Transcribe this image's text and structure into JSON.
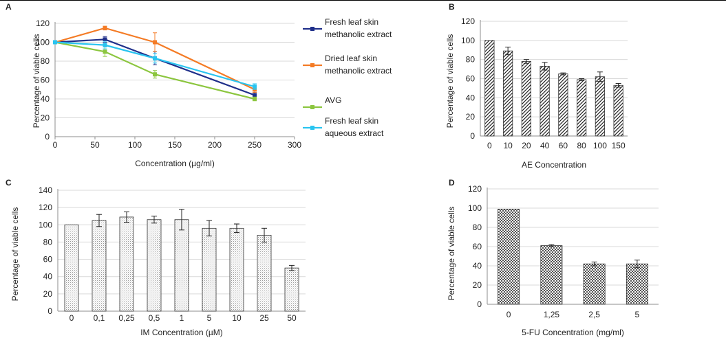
{
  "colors": {
    "axis": "#8c8c8c",
    "grid": "#d9d9d9",
    "text": "#222222",
    "bar_stroke": "#333333",
    "series_fresh_methanolic": "#1f2f8a",
    "series_dried_methanolic": "#f47b25",
    "series_avg": "#8cc63f",
    "series_fresh_aqueous": "#29c4f0"
  },
  "chart_data": [
    {
      "panel": "A",
      "type": "line",
      "xlabel": "Concentration (µg/ml)",
      "ylabel": "Percentage of viable cells",
      "xlim": [
        0,
        300
      ],
      "ylim": [
        0,
        120
      ],
      "xticks": [
        "0",
        "50",
        "100",
        "150",
        "200",
        "250",
        "300"
      ],
      "yticks": [
        "0",
        "20",
        "40",
        "60",
        "80",
        "100",
        "120"
      ],
      "grid": "horizontal",
      "legend_position": "right",
      "x": [
        0,
        62.5,
        125,
        250
      ],
      "series": [
        {
          "name": "Fresh leaf skin methanolic extract",
          "legend_lines": [
            "Fresh leaf skin",
            "methanolic extract"
          ],
          "values": [
            100,
            103,
            83,
            44
          ],
          "errors": [
            0,
            3,
            7,
            3
          ]
        },
        {
          "name": "Dried leaf skin methanolic extract",
          "legend_lines": [
            "Dried leaf skin",
            "methanolic extract"
          ],
          "values": [
            100,
            115,
            100,
            50
          ],
          "errors": [
            0,
            2,
            10,
            3
          ]
        },
        {
          "name": "AVG",
          "legend_lines": [
            "AVG"
          ],
          "values": [
            100,
            90,
            66,
            40
          ],
          "errors": [
            0,
            5,
            4,
            2
          ]
        },
        {
          "name": "Fresh leaf skin aqueous extract",
          "legend_lines": [
            "Fresh leaf skin",
            "aqueous extract"
          ],
          "values": [
            100,
            97,
            83,
            53
          ],
          "errors": [
            0,
            4,
            5,
            3
          ]
        }
      ]
    },
    {
      "panel": "B",
      "type": "bar",
      "pattern": "diagonal",
      "xlabel": "AE Concentration",
      "ylabel": "Percentage of viable cells",
      "ylim": [
        0,
        120
      ],
      "yticks": [
        "0",
        "20",
        "40",
        "60",
        "80",
        "100",
        "120"
      ],
      "grid": "horizontal",
      "categories": [
        "0",
        "10",
        "20",
        "40",
        "60",
        "80",
        "100",
        "150"
      ],
      "values": [
        100,
        89,
        78,
        73,
        65,
        59,
        62,
        53
      ],
      "errors": [
        0,
        4,
        2,
        4,
        1,
        1,
        5,
        2
      ]
    },
    {
      "panel": "C",
      "type": "bar",
      "pattern": "dots",
      "xlabel": "IM Concentration (µM)",
      "ylabel": "Percentage of viable cells",
      "ylim": [
        0,
        140
      ],
      "yticks": [
        "0",
        "20",
        "40",
        "60",
        "80",
        "100",
        "120",
        "140"
      ],
      "grid": "horizontal",
      "categories": [
        "0",
        "0,1",
        "0,25",
        "0,5",
        "1",
        "5",
        "10",
        "25",
        "50"
      ],
      "values": [
        100,
        105,
        109,
        106,
        106,
        96,
        96,
        88,
        50
      ],
      "errors": [
        0,
        7,
        6,
        4,
        12,
        9,
        5,
        8,
        3
      ]
    },
    {
      "panel": "D",
      "type": "bar",
      "pattern": "checker",
      "xlabel": "5-FU Concentration (mg/ml)",
      "ylabel": "Percentage of viable cells",
      "ylim": [
        0,
        120
      ],
      "yticks": [
        "0",
        "20",
        "40",
        "60",
        "80",
        "100",
        "120"
      ],
      "grid": "horizontal",
      "categories": [
        "0",
        "1,25",
        "2,5",
        "5"
      ],
      "values": [
        99,
        61,
        42,
        42
      ],
      "errors": [
        0,
        1,
        2,
        4
      ]
    }
  ]
}
